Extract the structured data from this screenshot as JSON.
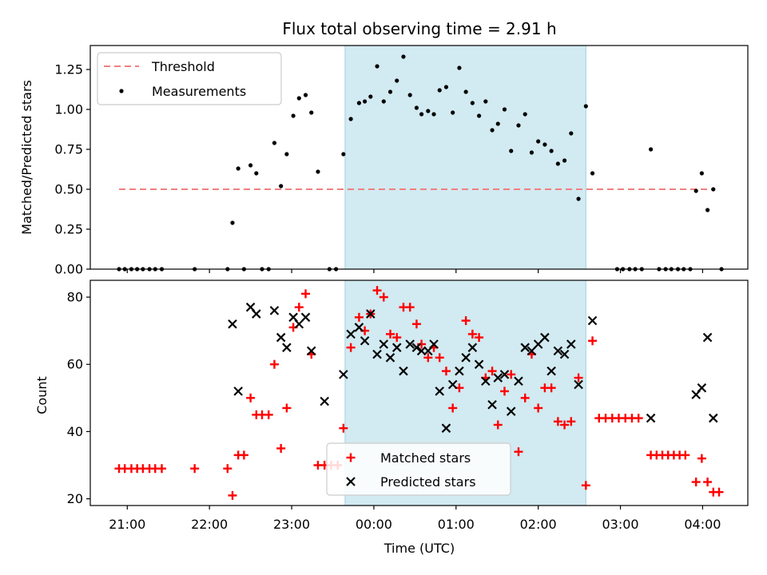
{
  "colors": {
    "shade": "#add8e6",
    "threshold": "#f08080",
    "measurement": "#000000",
    "matched": "#ff0000",
    "predicted": "#000000",
    "axis": "#000000"
  },
  "chart_data": [
    {
      "type": "scatter",
      "title": "Flux total observing time = 2.91 h",
      "ylabel": "Matched/Predicted stars",
      "xlabel": "",
      "x_units": "hours since 21:00 UTC (evening start)",
      "xlim": [
        -0.45,
        7.55
      ],
      "ylim": [
        0,
        1.4
      ],
      "y_ticks": [
        0,
        0.25,
        0.5,
        0.75,
        1.0,
        1.25
      ],
      "y_tick_labels": [
        "0.00",
        "0.25",
        "0.50",
        "0.75",
        "1.00",
        "1.25"
      ],
      "grid": false,
      "legend_position": "top-left",
      "shaded_x_range": [
        2.65,
        5.58
      ],
      "threshold": {
        "name": "Threshold",
        "y": 0.5,
        "x_range": [
          -0.1,
          7.15
        ]
      },
      "series": [
        {
          "name": "Measurements",
          "points": [
            [
              -0.1,
              0
            ],
            [
              -0.03,
              0
            ],
            [
              0.05,
              0
            ],
            [
              0.12,
              0
            ],
            [
              0.19,
              0
            ],
            [
              0.27,
              0
            ],
            [
              0.34,
              0
            ],
            [
              0.42,
              0
            ],
            [
              0.82,
              0
            ],
            [
              1.22,
              0
            ],
            [
              1.28,
              0.29
            ],
            [
              1.35,
              0.63
            ],
            [
              1.42,
              0
            ],
            [
              1.5,
              0.65
            ],
            [
              1.57,
              0.6
            ],
            [
              1.64,
              0
            ],
            [
              1.72,
              0
            ],
            [
              1.79,
              0.79
            ],
            [
              1.87,
              0.52
            ],
            [
              1.94,
              0.72
            ],
            [
              2.02,
              0.96
            ],
            [
              2.09,
              1.07
            ],
            [
              2.17,
              1.09
            ],
            [
              2.24,
              0.98
            ],
            [
              2.32,
              0.61
            ],
            [
              2.46,
              0
            ],
            [
              2.54,
              0
            ],
            [
              2.63,
              0.72
            ],
            [
              2.72,
              0.94
            ],
            [
              2.82,
              1.04
            ],
            [
              2.89,
              1.05
            ],
            [
              2.96,
              1.08
            ],
            [
              3.04,
              1.27
            ],
            [
              3.12,
              1.05
            ],
            [
              3.2,
              1.11
            ],
            [
              3.28,
              1.18
            ],
            [
              3.36,
              1.33
            ],
            [
              3.44,
              1.09
            ],
            [
              3.52,
              1.01
            ],
            [
              3.58,
              0.97
            ],
            [
              3.66,
              0.99
            ],
            [
              3.73,
              0.97
            ],
            [
              3.8,
              1.12
            ],
            [
              3.88,
              1.14
            ],
            [
              3.96,
              0.98
            ],
            [
              4.04,
              1.26
            ],
            [
              4.12,
              1.11
            ],
            [
              4.2,
              1.04
            ],
            [
              4.28,
              0.96
            ],
            [
              4.36,
              1.05
            ],
            [
              4.44,
              0.87
            ],
            [
              4.51,
              0.91
            ],
            [
              4.59,
              1.0
            ],
            [
              4.67,
              0.74
            ],
            [
              4.76,
              0.9
            ],
            [
              4.84,
              0.97
            ],
            [
              4.92,
              0.73
            ],
            [
              5.0,
              0.8
            ],
            [
              5.08,
              0.78
            ],
            [
              5.16,
              0.74
            ],
            [
              5.24,
              0.66
            ],
            [
              5.32,
              0.68
            ],
            [
              5.4,
              0.85
            ],
            [
              5.49,
              0.44
            ],
            [
              5.58,
              1.02
            ],
            [
              5.66,
              0.6
            ],
            [
              5.96,
              0
            ],
            [
              6.03,
              0
            ],
            [
              6.11,
              0
            ],
            [
              6.18,
              0
            ],
            [
              6.26,
              0
            ],
            [
              6.37,
              0.75
            ],
            [
              6.47,
              0
            ],
            [
              6.55,
              0
            ],
            [
              6.62,
              0
            ],
            [
              6.7,
              0
            ],
            [
              6.77,
              0
            ],
            [
              6.85,
              0
            ],
            [
              6.92,
              0.49
            ],
            [
              6.99,
              0.6
            ],
            [
              7.06,
              0.37
            ],
            [
              7.13,
              0.5
            ],
            [
              7.23,
              0
            ]
          ]
        }
      ]
    },
    {
      "type": "scatter",
      "title": "",
      "ylabel": "Count",
      "xlabel": "Time (UTC)",
      "x_units": "hours since 21:00 UTC (evening start)",
      "xlim": [
        -0.45,
        7.55
      ],
      "ylim": [
        18,
        85
      ],
      "y_ticks": [
        20,
        40,
        60,
        80
      ],
      "y_tick_labels": [
        "20",
        "40",
        "60",
        "80"
      ],
      "x_ticks": [
        0,
        1,
        2,
        3,
        4,
        5,
        6,
        7
      ],
      "x_tick_labels": [
        "21:00",
        "22:00",
        "23:00",
        "00:00",
        "01:00",
        "02:00",
        "03:00",
        "04:00"
      ],
      "grid": false,
      "legend_position": "bottom-center",
      "shaded_x_range": [
        2.65,
        5.58
      ],
      "series": [
        {
          "name": "Matched stars",
          "marker": "plus",
          "points": [
            [
              -0.1,
              29
            ],
            [
              -0.03,
              29
            ],
            [
              0.05,
              29
            ],
            [
              0.12,
              29
            ],
            [
              0.19,
              29
            ],
            [
              0.27,
              29
            ],
            [
              0.34,
              29
            ],
            [
              0.42,
              29
            ],
            [
              0.82,
              29
            ],
            [
              1.22,
              29
            ],
            [
              1.28,
              21
            ],
            [
              1.35,
              33
            ],
            [
              1.42,
              33
            ],
            [
              1.5,
              50
            ],
            [
              1.57,
              45
            ],
            [
              1.64,
              45
            ],
            [
              1.72,
              45
            ],
            [
              1.79,
              60
            ],
            [
              1.87,
              35
            ],
            [
              1.94,
              47
            ],
            [
              2.02,
              71
            ],
            [
              2.09,
              77
            ],
            [
              2.17,
              81
            ],
            [
              2.24,
              63
            ],
            [
              2.32,
              30
            ],
            [
              2.4,
              30
            ],
            [
              2.48,
              30
            ],
            [
              2.56,
              30
            ],
            [
              2.63,
              41
            ],
            [
              2.72,
              65
            ],
            [
              2.82,
              74
            ],
            [
              2.89,
              70
            ],
            [
              2.96,
              75
            ],
            [
              3.04,
              82
            ],
            [
              3.12,
              80
            ],
            [
              3.2,
              69
            ],
            [
              3.28,
              68
            ],
            [
              3.36,
              77
            ],
            [
              3.44,
              77
            ],
            [
              3.52,
              72
            ],
            [
              3.58,
              66
            ],
            [
              3.66,
              62
            ],
            [
              3.73,
              65
            ],
            [
              3.8,
              62
            ],
            [
              3.88,
              58
            ],
            [
              3.96,
              47
            ],
            [
              4.04,
              53
            ],
            [
              4.12,
              73
            ],
            [
              4.2,
              69
            ],
            [
              4.28,
              68
            ],
            [
              4.36,
              56
            ],
            [
              4.44,
              58
            ],
            [
              4.51,
              42
            ],
            [
              4.59,
              52
            ],
            [
              4.67,
              57
            ],
            [
              4.76,
              34
            ],
            [
              4.84,
              50
            ],
            [
              4.92,
              63
            ],
            [
              5.0,
              47
            ],
            [
              5.08,
              53
            ],
            [
              5.16,
              53
            ],
            [
              5.24,
              43
            ],
            [
              5.32,
              42
            ],
            [
              5.4,
              43
            ],
            [
              5.49,
              56
            ],
            [
              5.58,
              24
            ],
            [
              5.66,
              67
            ],
            [
              5.74,
              44
            ],
            [
              5.82,
              44
            ],
            [
              5.9,
              44
            ],
            [
              5.98,
              44
            ],
            [
              6.06,
              44
            ],
            [
              6.14,
              44
            ],
            [
              6.22,
              44
            ],
            [
              6.37,
              33
            ],
            [
              6.44,
              33
            ],
            [
              6.51,
              33
            ],
            [
              6.58,
              33
            ],
            [
              6.65,
              33
            ],
            [
              6.72,
              33
            ],
            [
              6.79,
              33
            ],
            [
              6.92,
              25
            ],
            [
              6.99,
              32
            ],
            [
              7.06,
              25
            ],
            [
              7.13,
              22
            ],
            [
              7.2,
              22
            ]
          ]
        },
        {
          "name": "Predicted stars",
          "marker": "x",
          "points": [
            [
              1.28,
              72
            ],
            [
              1.35,
              52
            ],
            [
              1.5,
              77
            ],
            [
              1.57,
              75
            ],
            [
              1.79,
              76
            ],
            [
              1.87,
              68
            ],
            [
              1.94,
              65
            ],
            [
              2.02,
              74
            ],
            [
              2.09,
              72
            ],
            [
              2.17,
              74
            ],
            [
              2.24,
              64
            ],
            [
              2.4,
              49
            ],
            [
              2.63,
              57
            ],
            [
              2.72,
              69
            ],
            [
              2.82,
              71
            ],
            [
              2.89,
              67
            ],
            [
              2.96,
              75
            ],
            [
              3.04,
              63
            ],
            [
              3.12,
              66
            ],
            [
              3.2,
              62
            ],
            [
              3.28,
              65
            ],
            [
              3.36,
              58
            ],
            [
              3.44,
              66
            ],
            [
              3.52,
              65
            ],
            [
              3.58,
              64
            ],
            [
              3.66,
              64
            ],
            [
              3.73,
              66
            ],
            [
              3.8,
              52
            ],
            [
              3.88,
              41
            ],
            [
              3.96,
              54
            ],
            [
              4.04,
              58
            ],
            [
              4.12,
              62
            ],
            [
              4.2,
              65
            ],
            [
              4.28,
              60
            ],
            [
              4.36,
              55
            ],
            [
              4.44,
              48
            ],
            [
              4.51,
              56
            ],
            [
              4.59,
              57
            ],
            [
              4.67,
              46
            ],
            [
              4.76,
              55
            ],
            [
              4.84,
              65
            ],
            [
              4.92,
              64
            ],
            [
              5.0,
              66
            ],
            [
              5.08,
              68
            ],
            [
              5.16,
              58
            ],
            [
              5.24,
              64
            ],
            [
              5.32,
              63
            ],
            [
              5.4,
              66
            ],
            [
              5.49,
              54
            ],
            [
              5.66,
              73
            ],
            [
              6.37,
              44
            ],
            [
              6.92,
              51
            ],
            [
              6.99,
              53
            ],
            [
              7.06,
              68
            ],
            [
              7.13,
              44
            ]
          ]
        }
      ]
    }
  ]
}
